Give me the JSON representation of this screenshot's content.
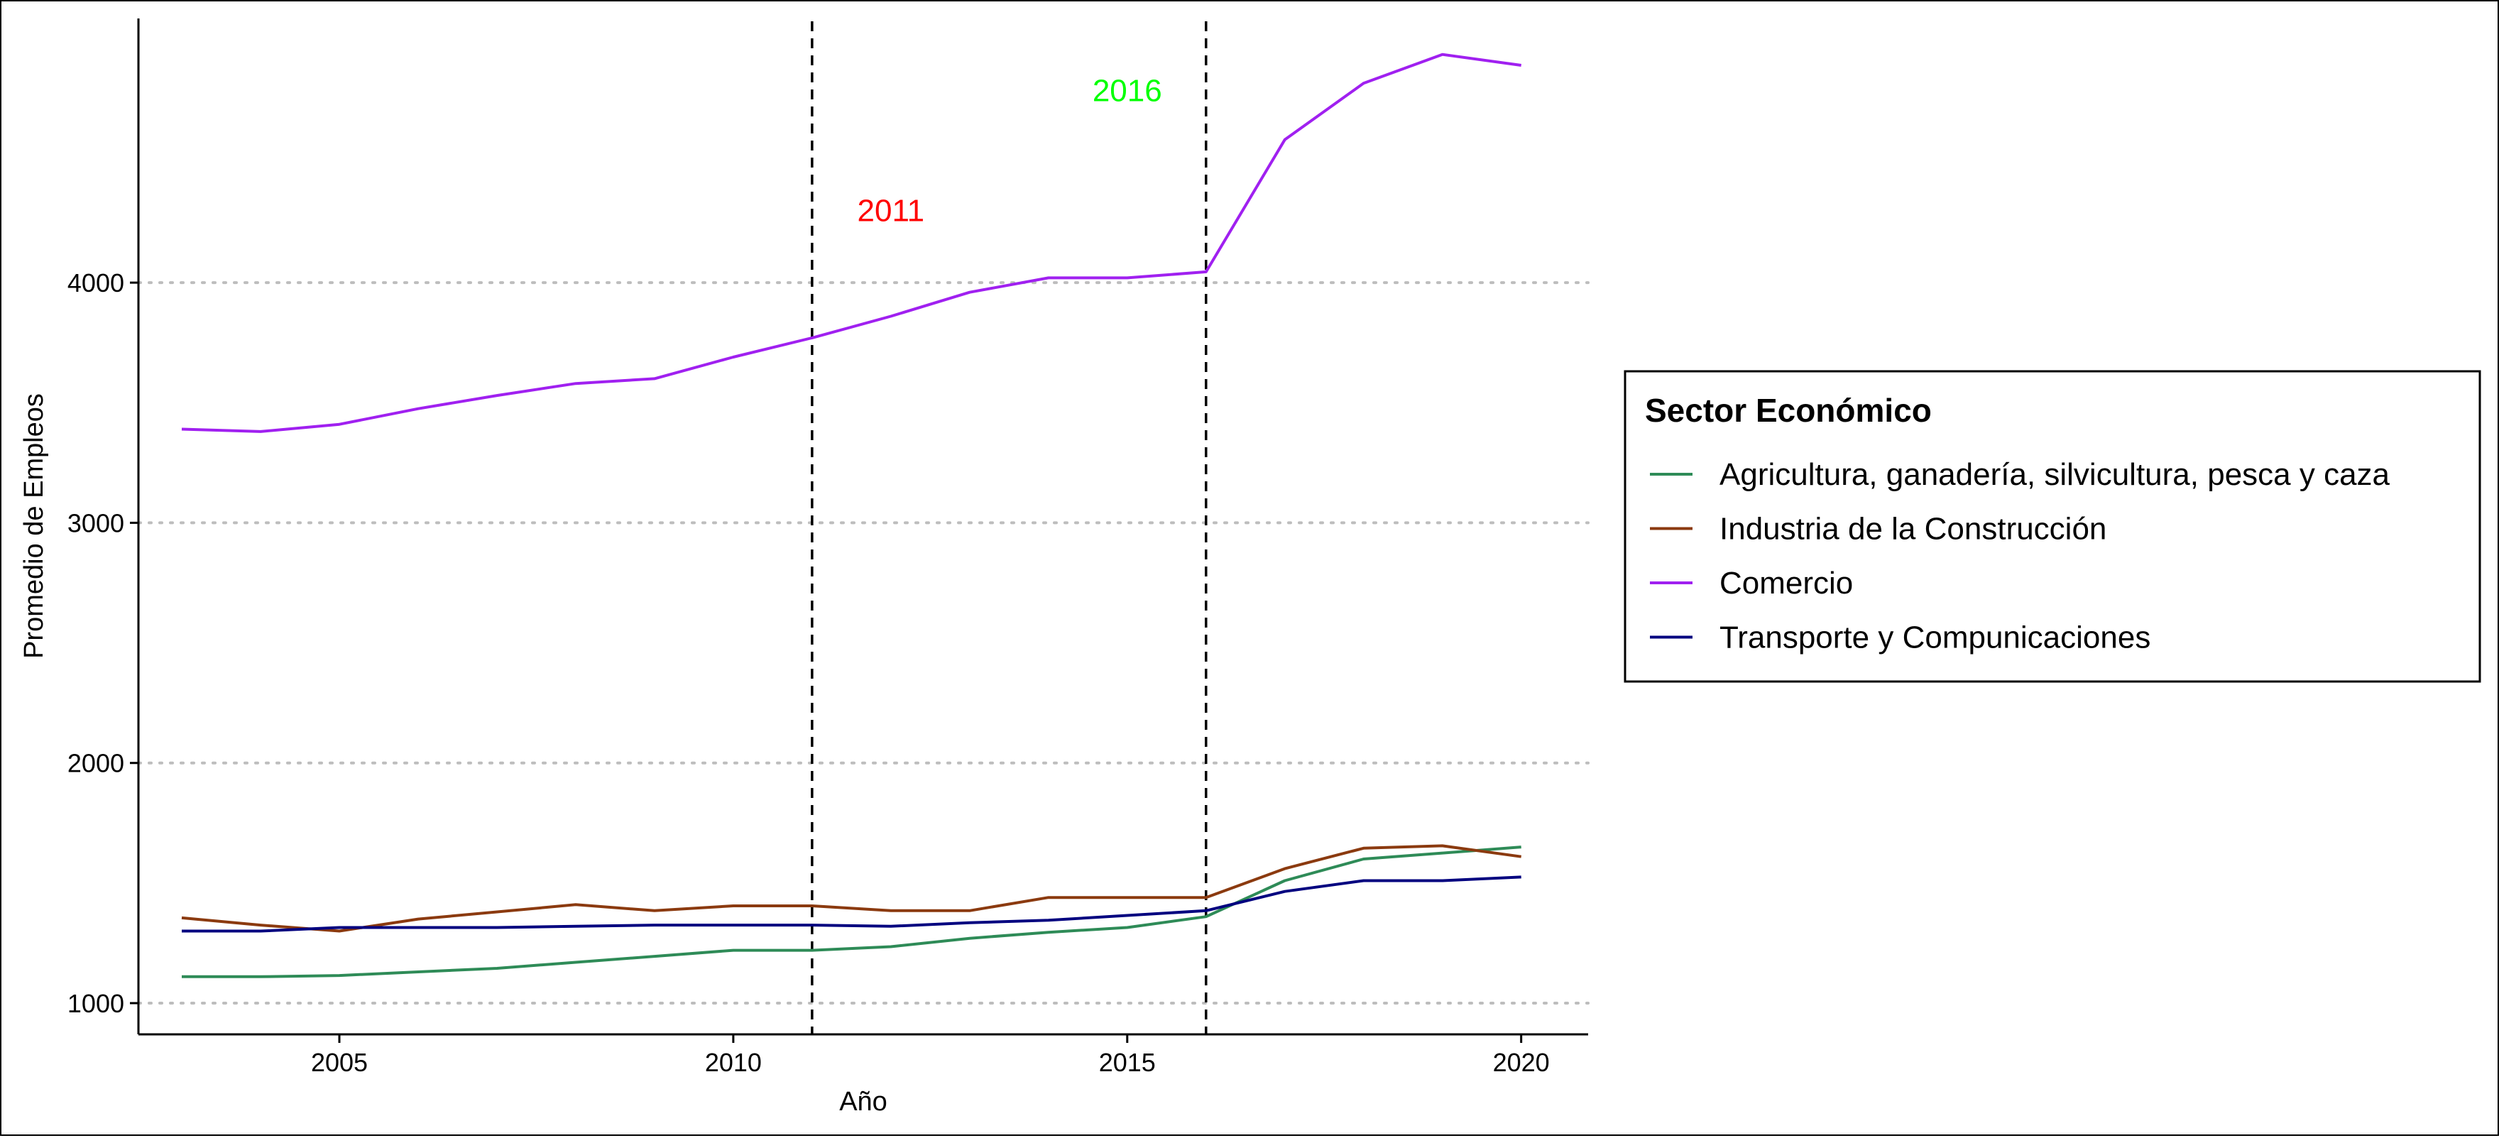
{
  "chart_data": {
    "type": "line",
    "xlabel": "Año",
    "ylabel": "Promedio de Empleos",
    "xlim": [
      2002.45,
      2020.85
    ],
    "ylim": [
      870,
      5100
    ],
    "x_ticks": [
      2005,
      2010,
      2015,
      2020
    ],
    "y_ticks": [
      1000,
      2000,
      3000,
      4000
    ],
    "y_gridlines": "dotted",
    "x": [
      2003,
      2004,
      2005,
      2006,
      2007,
      2008,
      2009,
      2010,
      2011,
      2012,
      2013,
      2014,
      2015,
      2016,
      2017,
      2018,
      2019,
      2020
    ],
    "series": [
      {
        "name": "Agricultura, ganadería, silvicultura, pesca y caza",
        "color": "#2e8b57",
        "values": [
          1110,
          1110,
          1115,
          1130,
          1145,
          1170,
          1195,
          1220,
          1220,
          1235,
          1270,
          1295,
          1315,
          1360,
          1510,
          1600,
          1625,
          1650
        ]
      },
      {
        "name": "Industria de la Construcción",
        "color": "#8b3a0f",
        "values": [
          1355,
          1325,
          1300,
          1350,
          1380,
          1410,
          1385,
          1405,
          1405,
          1385,
          1385,
          1440,
          1440,
          1440,
          1560,
          1645,
          1655,
          1610
        ]
      },
      {
        "name": "Comercio",
        "color": "#a020f0",
        "values": [
          3390,
          3380,
          3410,
          3475,
          3530,
          3580,
          3600,
          3690,
          3770,
          3860,
          3960,
          4020,
          4020,
          4045,
          4595,
          4830,
          4950,
          4905
        ]
      },
      {
        "name": "Transporte y Compunicaciones",
        "color": "#00007f",
        "values": [
          1300,
          1300,
          1315,
          1315,
          1315,
          1320,
          1325,
          1325,
          1325,
          1320,
          1335,
          1345,
          1365,
          1385,
          1465,
          1510,
          1510,
          1525
        ]
      }
    ],
    "vlines": [
      {
        "x": 2011,
        "style": "dashed",
        "color": "#000000"
      },
      {
        "x": 2016,
        "style": "dashed",
        "color": "#000000"
      }
    ],
    "annotations": [
      {
        "text": "2011",
        "x": 2012,
        "y": 4300,
        "color": "#ff0000"
      },
      {
        "text": "2016",
        "x": 2015,
        "y": 4800,
        "color": "#00ff00"
      }
    ],
    "legend": {
      "title": "Sector Económico",
      "position": "right"
    }
  }
}
